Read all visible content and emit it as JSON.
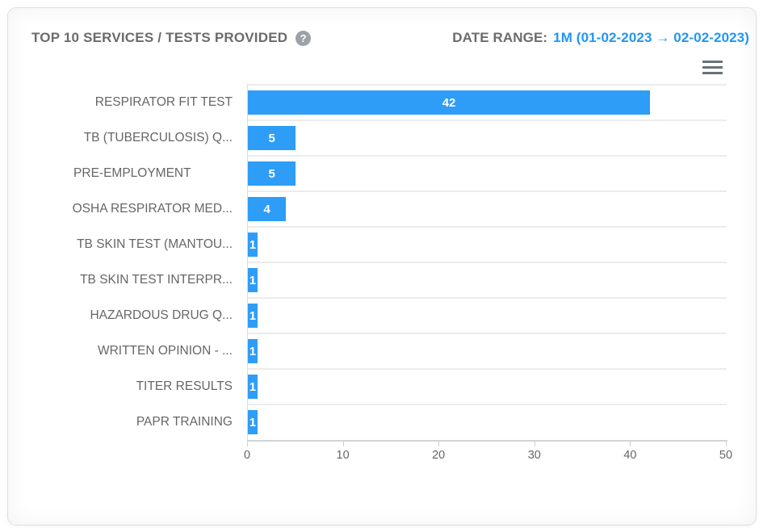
{
  "panel": {
    "title": "TOP 10 SERVICES / TESTS PROVIDED",
    "help_icon_glyph": "?",
    "date_range_label": "DATE RANGE:",
    "date_range_value": "1M (01-02-2023 → 02-02-2023)"
  },
  "chart_data": {
    "type": "bar",
    "orientation": "horizontal",
    "title": "TOP 10 SERVICES / TESTS PROVIDED",
    "categories": [
      "RESPIRATOR FIT TEST",
      "TB (TUBERCULOSIS) Q...",
      "PRE-EMPLOYMENT            ",
      "OSHA RESPIRATOR MED...",
      "TB SKIN TEST (MANTOU...",
      "TB SKIN TEST INTERPR...",
      "HAZARDOUS DRUG Q...",
      "WRITTEN OPINION - ...",
      "TITER RESULTS",
      "PAPR TRAINING"
    ],
    "values": [
      42,
      5,
      5,
      4,
      1,
      1,
      1,
      1,
      1,
      1
    ],
    "xlabel": "",
    "ylabel": "",
    "xlim": [
      0,
      50
    ],
    "x_ticks": [
      0,
      10,
      20,
      30,
      40,
      50
    ],
    "grid": "horizontal-category-bands",
    "legend": "none",
    "bar_color": "#2e9df7",
    "data_label_color": "#ffffff"
  },
  "colors": {
    "accent_blue": "#2196f3",
    "bar_blue": "#2e9df7",
    "title_gray": "#6b6b6b",
    "axis_text_gray": "#666666",
    "gridline_gray": "#ececec"
  }
}
